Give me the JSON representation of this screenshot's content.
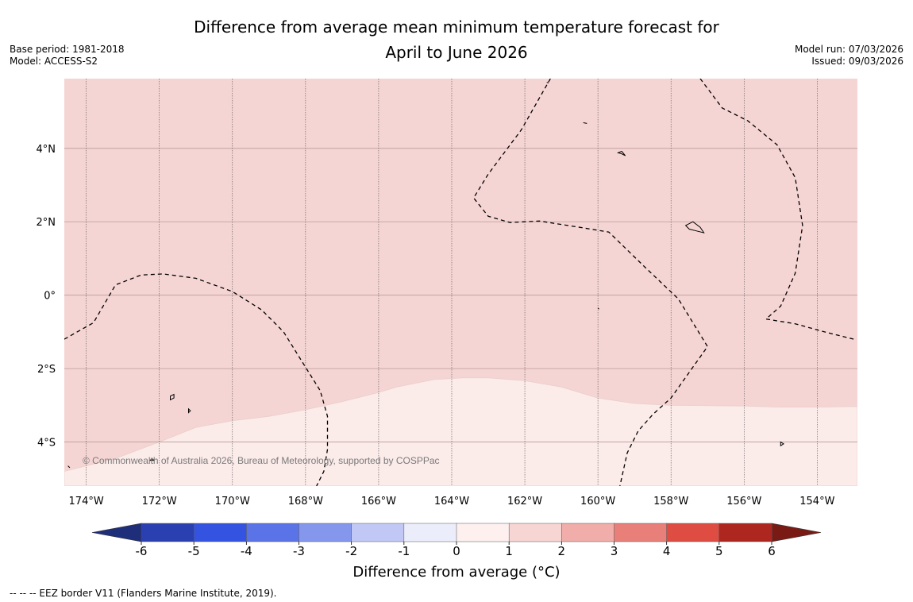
{
  "title": {
    "line1": "Difference from average mean minimum temperature forecast for",
    "line2": "April to June 2026"
  },
  "meta_left": {
    "base_period": "Base period: 1981-2018",
    "model": "Model: ACCESS-S2"
  },
  "meta_right": {
    "model_run": "Model run: 07/03/2026",
    "issued": "Issued: 09/03/2026"
  },
  "map": {
    "lon_range": [
      -174.6,
      -152.9
    ],
    "lat_range": [
      -5.2,
      5.9
    ],
    "lon_ticks": [
      {
        "value": -174,
        "label": "174°W"
      },
      {
        "value": -172,
        "label": "172°W"
      },
      {
        "value": -170,
        "label": "170°W"
      },
      {
        "value": -168,
        "label": "168°W"
      },
      {
        "value": -166,
        "label": "166°W"
      },
      {
        "value": -164,
        "label": "164°W"
      },
      {
        "value": -162,
        "label": "162°W"
      },
      {
        "value": -160,
        "label": "160°W"
      },
      {
        "value": -158,
        "label": "158°W"
      },
      {
        "value": -156,
        "label": "156°W"
      },
      {
        "value": -154,
        "label": "154°W"
      }
    ],
    "lat_ticks": [
      {
        "value": 4,
        "label": "4°N"
      },
      {
        "value": 2,
        "label": "2°N"
      },
      {
        "value": 0,
        "label": "0°"
      },
      {
        "value": -2,
        "label": "2°S"
      },
      {
        "value": -4,
        "label": "4°S"
      }
    ],
    "field_colors": {
      "one_to_two": "#f5d5d3",
      "zero_to_one": "#fbebe9"
    },
    "boundary_zero_to_one_lonlat": [
      [
        -174.6,
        -4.8
      ],
      [
        -173.2,
        -4.45
      ],
      [
        -172,
        -4.0
      ],
      [
        -171,
        -3.6
      ],
      [
        -170,
        -3.42
      ],
      [
        -169,
        -3.3
      ],
      [
        -168,
        -3.12
      ],
      [
        -167,
        -2.9
      ],
      [
        -166,
        -2.65
      ],
      [
        -165.5,
        -2.5
      ],
      [
        -164.5,
        -2.3
      ],
      [
        -163.7,
        -2.25
      ],
      [
        -163,
        -2.25
      ],
      [
        -162,
        -2.33
      ],
      [
        -161,
        -2.5
      ],
      [
        -160,
        -2.8
      ],
      [
        -159,
        -2.95
      ],
      [
        -158,
        -3.0
      ],
      [
        -156,
        -3.02
      ],
      [
        -155,
        -3.05
      ],
      [
        -154,
        -3.05
      ],
      [
        -152.9,
        -3.03
      ]
    ],
    "eez_borders_lonlat": [
      [
        [
          -174.6,
          -1.2
        ],
        [
          -173.8,
          -0.75
        ],
        [
          -173.2,
          0.28
        ],
        [
          -172.5,
          0.55
        ],
        [
          -171.9,
          0.58
        ],
        [
          -171,
          0.46
        ],
        [
          -170,
          0.1
        ],
        [
          -169.2,
          -0.4
        ],
        [
          -168.6,
          -1.0
        ],
        [
          -168.1,
          -1.8
        ],
        [
          -167.6,
          -2.6
        ],
        [
          -167.4,
          -3.3
        ],
        [
          -167.4,
          -4.2
        ],
        [
          -167.5,
          -4.8
        ],
        [
          -167.7,
          -5.2
        ]
      ],
      [
        [
          -161.3,
          5.9
        ],
        [
          -162.1,
          4.5
        ],
        [
          -163.0,
          3.3
        ],
        [
          -163.4,
          2.65
        ],
        [
          -163.0,
          2.15
        ],
        [
          -162.4,
          1.98
        ],
        [
          -161.6,
          2.02
        ],
        [
          -160.5,
          1.85
        ],
        [
          -159.7,
          1.72
        ],
        [
          -158.7,
          0.75
        ],
        [
          -157.8,
          -0.1
        ],
        [
          -157.0,
          -1.4
        ],
        [
          -157.5,
          -2.1
        ],
        [
          -158.0,
          -2.8
        ],
        [
          -158.5,
          -3.25
        ],
        [
          -158.9,
          -3.7
        ],
        [
          -159.2,
          -4.3
        ],
        [
          -159.4,
          -5.2
        ]
      ],
      [
        [
          -157.2,
          5.9
        ],
        [
          -156.6,
          5.1
        ],
        [
          -155.9,
          4.75
        ],
        [
          -155.1,
          4.1
        ],
        [
          -154.6,
          3.2
        ],
        [
          -154.4,
          1.9
        ],
        [
          -154.6,
          0.6
        ],
        [
          -155.0,
          -0.3
        ],
        [
          -155.4,
          -0.65
        ],
        [
          -154.6,
          -0.78
        ],
        [
          -153.8,
          -1.0
        ],
        [
          -153.0,
          -1.2
        ]
      ]
    ],
    "islands_lonlat": [
      [
        [
          -171.7,
          -2.85
        ],
        [
          -171.6,
          -2.8
        ],
        [
          -171.6,
          -2.7
        ],
        [
          -171.7,
          -2.75
        ]
      ],
      [
        [
          -171.2,
          -3.1
        ],
        [
          -171.15,
          -3.15
        ],
        [
          -171.2,
          -3.2
        ]
      ],
      [
        [
          -172.2,
          -4.45
        ],
        [
          -172.15,
          -4.5
        ],
        [
          -172.25,
          -4.5
        ]
      ],
      [
        [
          -159.35,
          3.85
        ],
        [
          -159.25,
          3.8
        ],
        [
          -159.35,
          3.92
        ],
        [
          -159.45,
          3.88
        ]
      ],
      [
        [
          -157.6,
          1.9
        ],
        [
          -157.4,
          2.0
        ],
        [
          -157.2,
          1.85
        ],
        [
          -157.1,
          1.7
        ],
        [
          -157.3,
          1.75
        ],
        [
          -157.5,
          1.8
        ]
      ],
      [
        [
          -160.4,
          4.7
        ],
        [
          -160.3,
          4.68
        ]
      ],
      [
        [
          -161.4,
          5.8
        ],
        [
          -161.35,
          5.78
        ]
      ],
      [
        [
          -155.0,
          -4.0
        ],
        [
          -154.92,
          -4.05
        ],
        [
          -155.0,
          -4.1
        ]
      ],
      [
        [
          -174.5,
          -4.65
        ],
        [
          -174.45,
          -4.7
        ]
      ],
      [
        [
          -160.0,
          -0.35
        ],
        [
          -159.97,
          -0.38
        ]
      ]
    ],
    "copyright": "© Commonwealth of Australia 2026, Bureau of Meteorology, supported by COSPPac"
  },
  "colorbar": {
    "label": "Difference from average (°C)",
    "ticks": [
      "-6",
      "-5",
      "-4",
      "-3",
      "-2",
      "-1",
      "0",
      "1",
      "2",
      "3",
      "4",
      "5",
      "6"
    ],
    "colors": [
      "#2a3fb0",
      "#3353e0",
      "#5a73e6",
      "#8597ed",
      "#c2c8f5",
      "#ecedfb",
      "#fdf0ef",
      "#f6d5d3",
      "#f0adaa",
      "#e87f79",
      "#de4c42",
      "#ae2620"
    ],
    "under_color": "#1f2e7a",
    "over_color": "#7a1a15"
  },
  "footnote": "--  --  -- EEZ border V11 (Flanders Marine Institute, 2019)."
}
